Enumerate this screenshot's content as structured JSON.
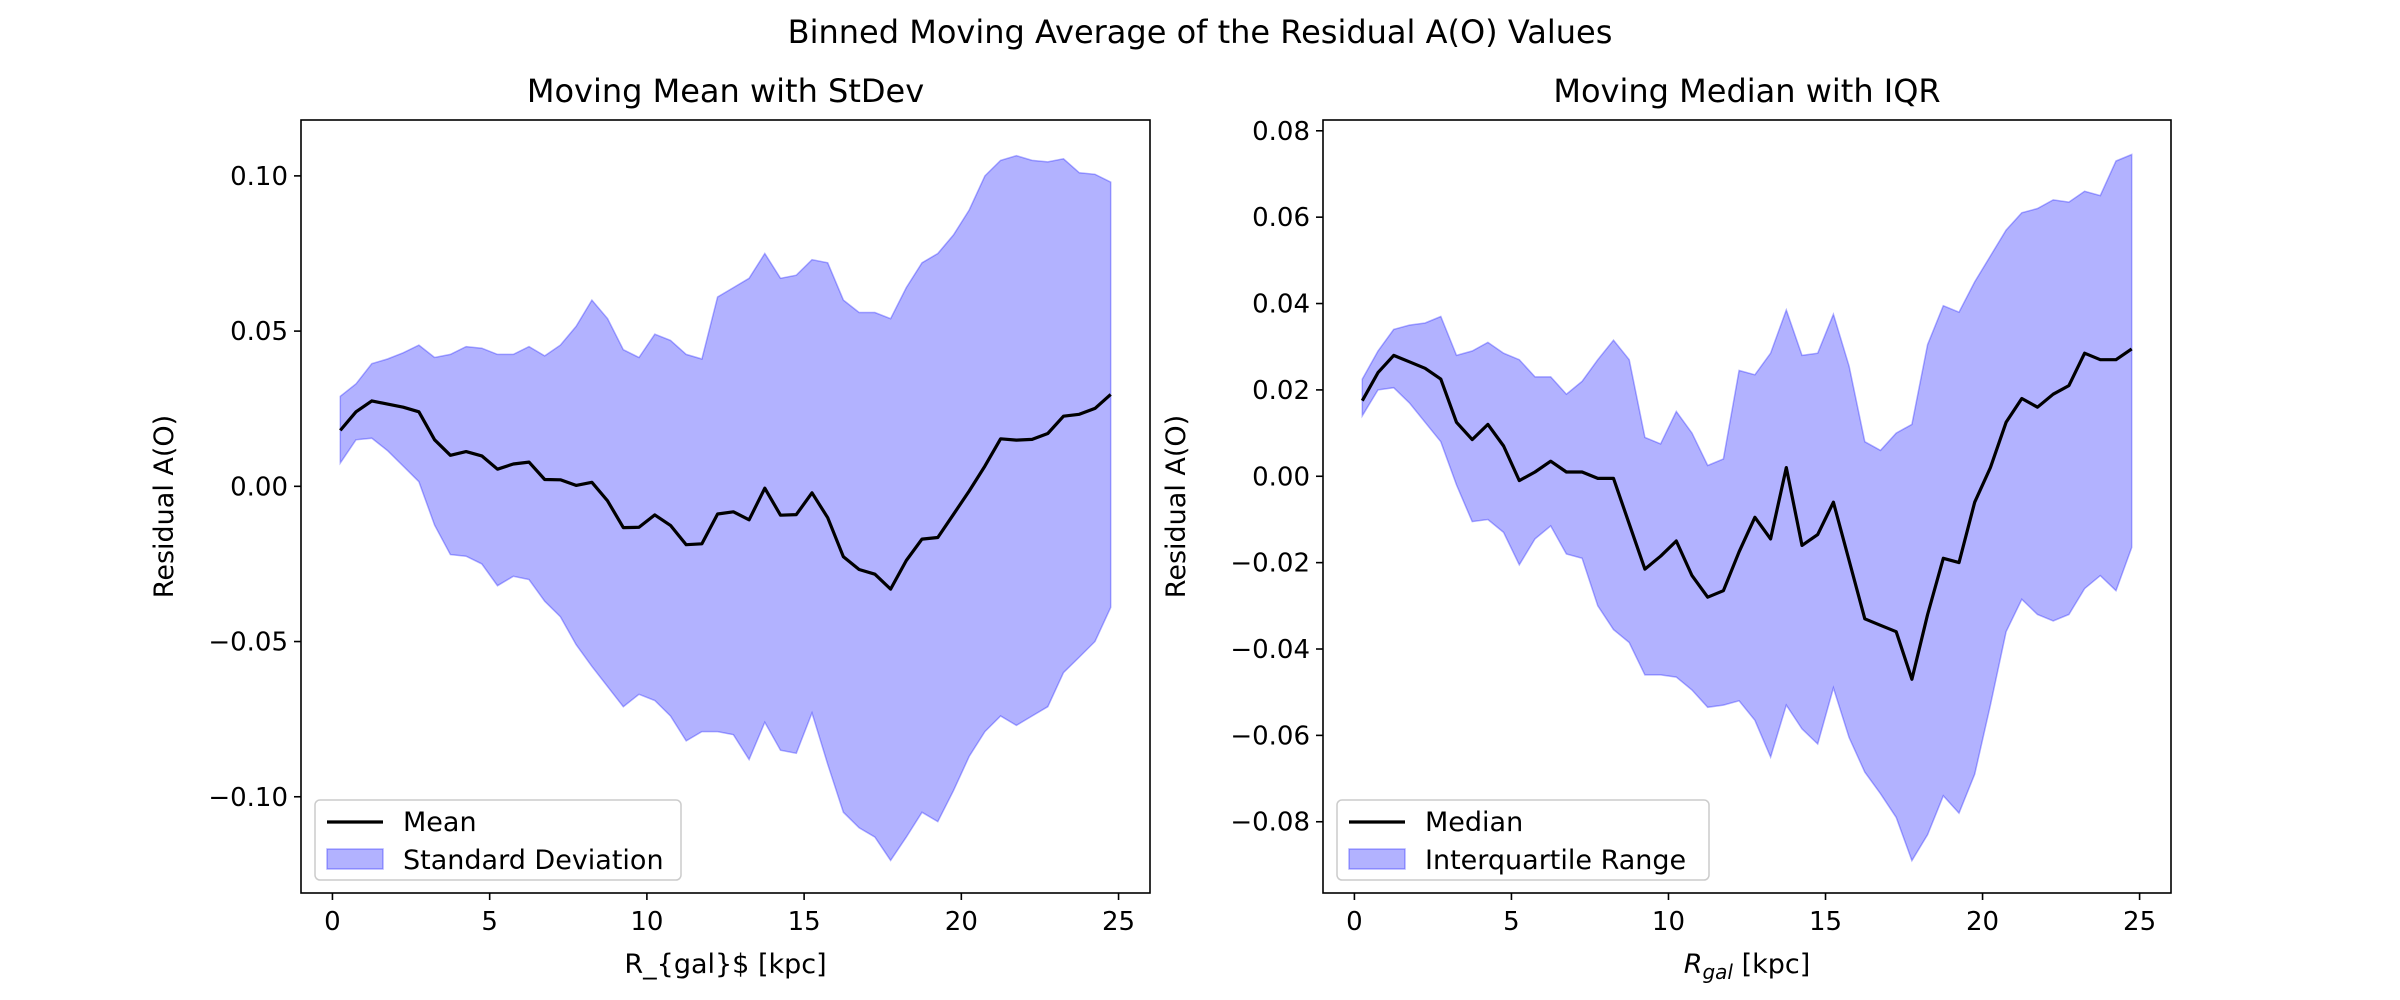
{
  "figure": {
    "suptitle": "Binned Moving Average of the Residual A(O) Values"
  },
  "chart_data": [
    {
      "type": "line",
      "title": "Moving Mean with StDev",
      "xlabel": "R_{gal}$ [kpc]",
      "ylabel": "Residual A(O)",
      "xlim": [
        -1.0,
        26.0
      ],
      "ylim": [
        -0.131,
        0.118
      ],
      "xticks": [
        0,
        5,
        10,
        15,
        20,
        25
      ],
      "xtick_labels": [
        "0",
        "5",
        "10",
        "15",
        "20",
        "25"
      ],
      "yticks": [
        -0.1,
        -0.05,
        0.0,
        0.05,
        0.1
      ],
      "ytick_labels": [
        "−0.10",
        "−0.05",
        "0.00",
        "0.05",
        "0.10"
      ],
      "grid": false,
      "legend_position": "lower-left",
      "x": [
        0.25,
        0.75,
        1.25,
        1.75,
        2.25,
        2.75,
        3.25,
        3.75,
        4.25,
        4.75,
        5.25,
        5.75,
        6.25,
        6.75,
        7.25,
        7.75,
        8.25,
        8.75,
        9.25,
        9.75,
        10.25,
        10.75,
        11.25,
        11.75,
        12.25,
        12.75,
        13.25,
        13.75,
        14.25,
        14.75,
        15.25,
        15.75,
        16.25,
        16.75,
        17.25,
        17.75,
        18.25,
        18.75,
        19.25,
        19.75,
        20.25,
        20.75,
        21.25,
        21.75,
        22.25,
        22.75,
        23.25,
        23.75,
        24.25,
        24.75
      ],
      "series": [
        {
          "name": "Mean",
          "kind": "line",
          "color": "#000000",
          "values": [
            0.018,
            0.024,
            0.0275,
            0.0265,
            0.0255,
            0.024,
            0.015,
            0.01,
            0.0112,
            0.0098,
            0.0055,
            0.0072,
            0.0078,
            0.0022,
            0.0021,
            0.0003,
            0.0013,
            -0.0047,
            -0.0133,
            -0.0132,
            -0.0092,
            -0.0126,
            -0.0188,
            -0.0185,
            -0.0089,
            -0.0082,
            -0.0108,
            -0.0006,
            -0.0093,
            -0.0091,
            -0.0021,
            -0.0101,
            -0.0227,
            -0.0268,
            -0.0283,
            -0.0331,
            -0.0239,
            -0.017,
            -0.0165,
            -0.009,
            -0.0015,
            0.0065,
            0.0153,
            0.0149,
            0.0151,
            0.017,
            0.0226,
            0.0232,
            0.0251,
            0.0296
          ]
        },
        {
          "name": "Standard Deviation",
          "kind": "band",
          "color": "#0000ff",
          "opacity": 0.3,
          "lower": [
            0.0075,
            0.015,
            0.0155,
            0.0115,
            0.0065,
            0.0015,
            -0.0125,
            -0.022,
            -0.0225,
            -0.025,
            -0.032,
            -0.029,
            -0.03,
            -0.037,
            -0.042,
            -0.051,
            -0.058,
            -0.0645,
            -0.071,
            -0.067,
            -0.069,
            -0.074,
            -0.082,
            -0.079,
            -0.079,
            -0.08,
            -0.088,
            -0.076,
            -0.085,
            -0.086,
            -0.073,
            -0.0895,
            -0.105,
            -0.11,
            -0.113,
            -0.1205,
            -0.113,
            -0.105,
            -0.108,
            -0.098,
            -0.087,
            -0.079,
            -0.074,
            -0.077,
            -0.074,
            -0.071,
            -0.06,
            -0.055,
            -0.05,
            -0.039
          ],
          "upper": [
            0.029,
            0.033,
            0.0395,
            0.041,
            0.043,
            0.0455,
            0.0415,
            0.0425,
            0.045,
            0.0445,
            0.0425,
            0.0425,
            0.045,
            0.042,
            0.0455,
            0.0515,
            0.06,
            0.054,
            0.044,
            0.0415,
            0.049,
            0.047,
            0.0425,
            0.041,
            0.061,
            0.064,
            0.067,
            0.075,
            0.067,
            0.068,
            0.073,
            0.072,
            0.06,
            0.056,
            0.056,
            0.054,
            0.064,
            0.072,
            0.075,
            0.081,
            0.089,
            0.1,
            0.105,
            0.1065,
            0.105,
            0.1045,
            0.1055,
            0.101,
            0.1005,
            0.098
          ]
        }
      ]
    },
    {
      "type": "line",
      "title": "Moving Median with IQR",
      "xlabel": "R_gal [kpc]",
      "xlabel_parts": {
        "main": "R",
        "sub": "gal",
        "rest": " [kpc]"
      },
      "ylabel": "Residual A(O)",
      "xlim": [
        -1.0,
        26.0
      ],
      "ylim": [
        -0.0965,
        0.0825
      ],
      "xticks": [
        0,
        5,
        10,
        15,
        20,
        25
      ],
      "xtick_labels": [
        "0",
        "5",
        "10",
        "15",
        "20",
        "25"
      ],
      "yticks": [
        -0.08,
        -0.06,
        -0.04,
        -0.02,
        0.0,
        0.02,
        0.04,
        0.06,
        0.08
      ],
      "ytick_labels": [
        "−0.08",
        "−0.06",
        "−0.04",
        "−0.02",
        "0.00",
        "0.02",
        "0.04",
        "0.06",
        "0.08"
      ],
      "grid": false,
      "legend_position": "lower-left",
      "x": [
        0.25,
        0.75,
        1.25,
        1.75,
        2.25,
        2.75,
        3.25,
        3.75,
        4.25,
        4.75,
        5.25,
        5.75,
        6.25,
        6.75,
        7.25,
        7.75,
        8.25,
        8.75,
        9.25,
        9.75,
        10.25,
        10.75,
        11.25,
        11.75,
        12.25,
        12.75,
        13.25,
        13.75,
        14.25,
        14.75,
        15.25,
        15.75,
        16.25,
        16.75,
        17.25,
        17.75,
        18.25,
        18.75,
        19.25,
        19.75,
        20.25,
        20.75,
        21.25,
        21.75,
        22.25,
        22.75,
        23.25,
        23.75,
        24.25,
        24.75
      ],
      "series": [
        {
          "name": "Median",
          "kind": "line",
          "color": "#000000",
          "values": [
            0.0175,
            0.024,
            0.028,
            0.0265,
            0.025,
            0.0225,
            0.0125,
            0.0085,
            0.012,
            0.007,
            -0.001,
            0.001,
            0.0035,
            0.001,
            0.001,
            -0.0005,
            -0.0005,
            -0.011,
            -0.0215,
            -0.0185,
            -0.015,
            -0.023,
            -0.028,
            -0.0265,
            -0.0175,
            -0.0095,
            -0.0145,
            0.002,
            -0.016,
            -0.0135,
            -0.006,
            -0.0195,
            -0.033,
            -0.0345,
            -0.036,
            -0.047,
            -0.032,
            -0.019,
            -0.02,
            -0.006,
            0.002,
            0.0125,
            0.018,
            0.016,
            0.019,
            0.021,
            0.0285,
            0.027,
            0.027,
            0.0295
          ]
        },
        {
          "name": "Interquartile Range",
          "kind": "band",
          "color": "#0000ff",
          "opacity": 0.3,
          "lower": [
            0.014,
            0.02,
            0.0205,
            0.017,
            0.0125,
            0.008,
            -0.002,
            -0.0105,
            -0.01,
            -0.013,
            -0.0205,
            -0.0145,
            -0.0115,
            -0.018,
            -0.019,
            -0.03,
            -0.0355,
            -0.0385,
            -0.046,
            -0.046,
            -0.0465,
            -0.0495,
            -0.0535,
            -0.053,
            -0.052,
            -0.0565,
            -0.065,
            -0.053,
            -0.0585,
            -0.062,
            -0.049,
            -0.0605,
            -0.0685,
            -0.0735,
            -0.079,
            -0.089,
            -0.083,
            -0.074,
            -0.078,
            -0.069,
            -0.053,
            -0.036,
            -0.0285,
            -0.032,
            -0.0335,
            -0.032,
            -0.026,
            -0.023,
            -0.0265,
            -0.0165
          ],
          "upper": [
            0.0225,
            0.029,
            0.034,
            0.035,
            0.0355,
            0.037,
            0.028,
            0.029,
            0.031,
            0.0285,
            0.027,
            0.023,
            0.023,
            0.019,
            0.022,
            0.027,
            0.0315,
            0.027,
            0.009,
            0.0075,
            0.015,
            0.01,
            0.0025,
            0.004,
            0.0245,
            0.0235,
            0.0285,
            0.0385,
            0.028,
            0.0285,
            0.0375,
            0.0255,
            0.008,
            0.006,
            0.01,
            0.012,
            0.0305,
            0.0395,
            0.038,
            0.045,
            0.051,
            0.057,
            0.061,
            0.062,
            0.064,
            0.0635,
            0.066,
            0.065,
            0.073,
            0.0745
          ]
        }
      ]
    }
  ]
}
